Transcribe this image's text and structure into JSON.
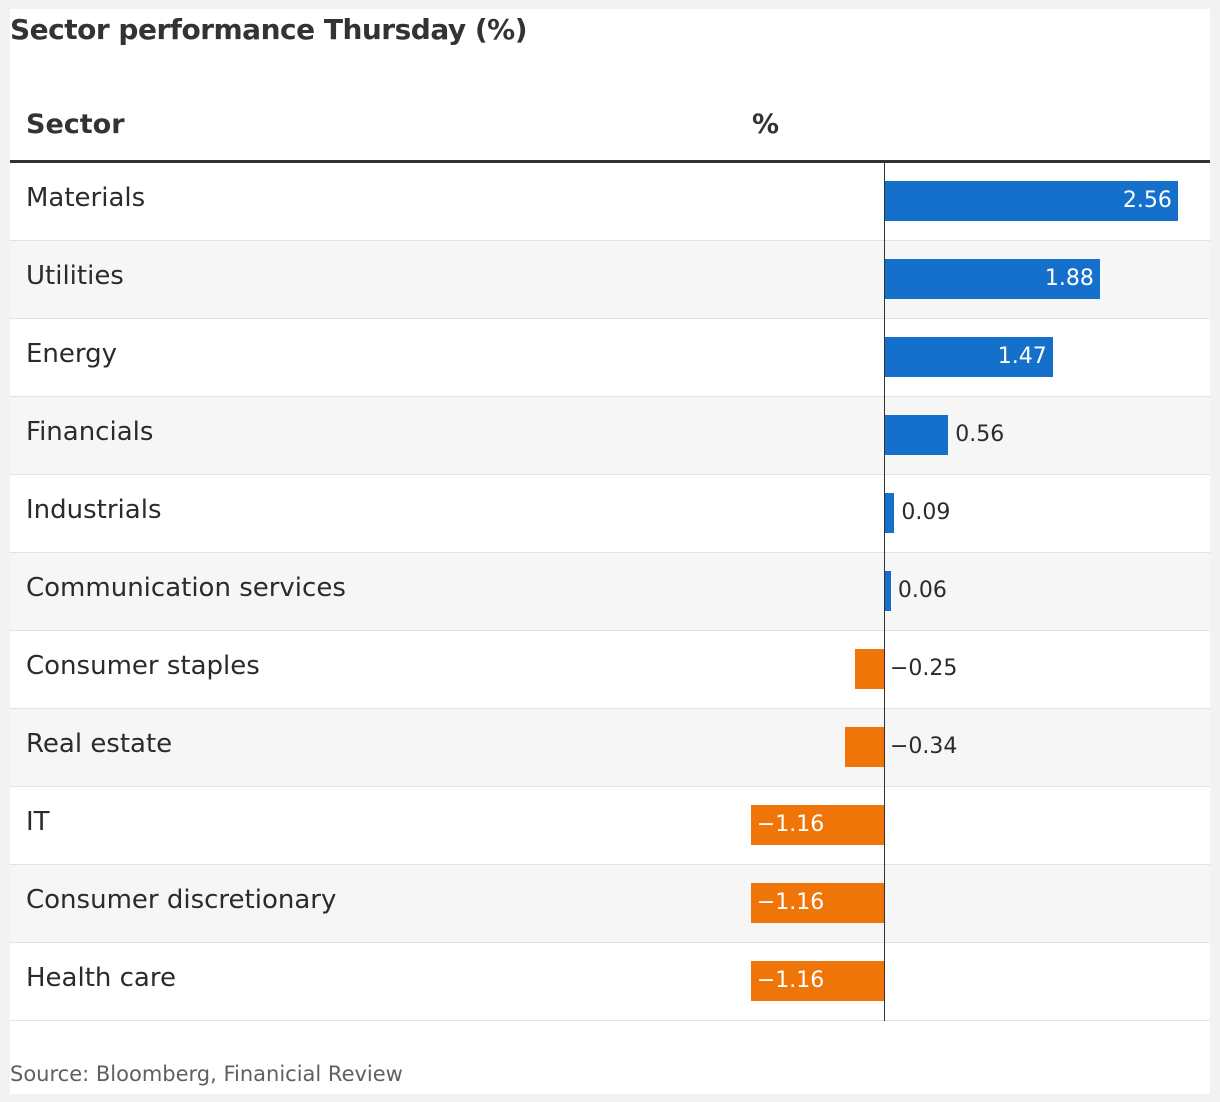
{
  "title": "Sector performance Thursday (%)",
  "columns": {
    "sector": "Sector",
    "value": "%"
  },
  "source": "Source: Bloomberg, Finanicial Review",
  "colors": {
    "positive": "#1570cc",
    "negative": "#f07508"
  },
  "chart_data": {
    "type": "bar",
    "orientation": "horizontal",
    "title": "Sector performance Thursday (%)",
    "categories": [
      "Materials",
      "Utilities",
      "Energy",
      "Financials",
      "Industrials",
      "Communication services",
      "Consumer staples",
      "Real estate",
      "IT",
      "Consumer discretionary",
      "Health care"
    ],
    "values": [
      2.56,
      1.88,
      1.47,
      0.56,
      0.09,
      0.06,
      -0.25,
      -0.34,
      -1.16,
      -1.16,
      -1.16
    ],
    "labels": [
      "2.56",
      "1.88",
      "1.47",
      "0.56",
      "0.09",
      "0.06",
      "−0.25",
      "−0.34",
      "−1.16",
      "−1.16",
      "−1.16"
    ],
    "grid": false,
    "legend": "none"
  }
}
